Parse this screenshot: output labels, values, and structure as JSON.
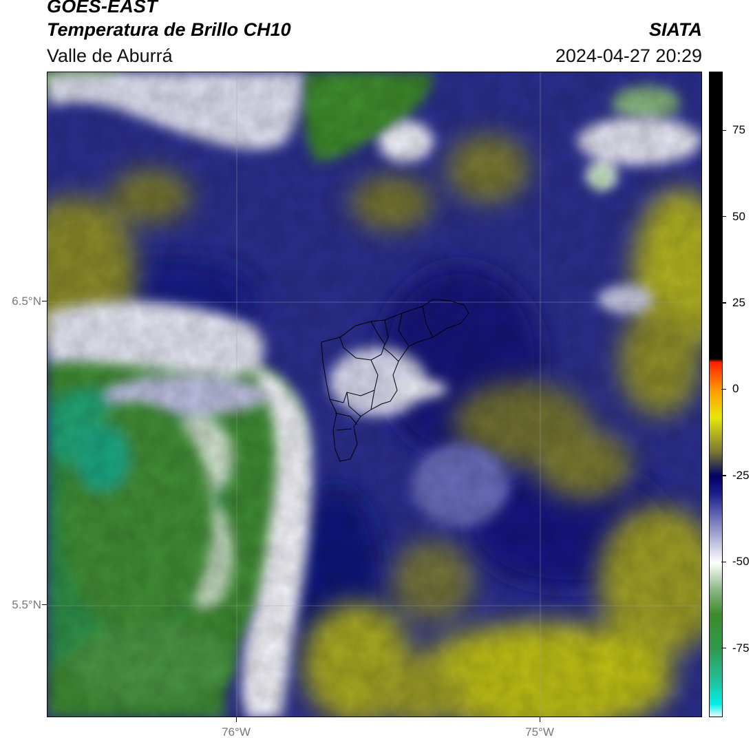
{
  "header": {
    "satellite": "GOES-EAST",
    "product": "Temperatura de Brillo CH10",
    "organization": "SIATA",
    "region": "Valle de Aburrá",
    "datetime": "2024-04-27 20:29"
  },
  "map": {
    "lat_ticks": [
      {
        "value": 6.5,
        "label": "6.5°N"
      },
      {
        "value": 5.5,
        "label": "5.5°N"
      }
    ],
    "lon_ticks": [
      {
        "value": -76.0,
        "label": "76°W"
      },
      {
        "value": -75.0,
        "label": "75°W"
      }
    ],
    "gridlines": true,
    "overlay": "municipal-boundaries"
  },
  "colorbar": {
    "ticks": [
      {
        "value": 75,
        "label": "75"
      },
      {
        "value": 50,
        "label": "50"
      },
      {
        "value": 25,
        "label": "25"
      },
      {
        "value": 0,
        "label": "0"
      },
      {
        "value": -25,
        "label": "-25"
      },
      {
        "value": -50,
        "label": "-50"
      },
      {
        "value": -75,
        "label": "-75"
      }
    ],
    "range": [
      -95,
      92
    ],
    "stops": [
      {
        "value": -95,
        "color": "#ffffff"
      },
      {
        "value": -91,
        "color": "#00f0e8"
      },
      {
        "value": -85,
        "color": "#21c4a4"
      },
      {
        "value": -75,
        "color": "#2e9a4e"
      },
      {
        "value": -65,
        "color": "#3c8b2a"
      },
      {
        "value": -58,
        "color": "#8ab684"
      },
      {
        "value": -50,
        "color": "#ffffff"
      },
      {
        "value": -40,
        "color": "#8d90c7"
      },
      {
        "value": -30,
        "color": "#1b1e8c"
      },
      {
        "value": -25,
        "color": "#000066"
      },
      {
        "value": -18,
        "color": "#777733"
      },
      {
        "value": -8,
        "color": "#e8e80a"
      },
      {
        "value": 0,
        "color": "#ff9900"
      },
      {
        "value": 8,
        "color": "#ff1f00"
      },
      {
        "value": 9,
        "color": "#000000"
      },
      {
        "value": 92,
        "color": "#000000"
      }
    ]
  }
}
